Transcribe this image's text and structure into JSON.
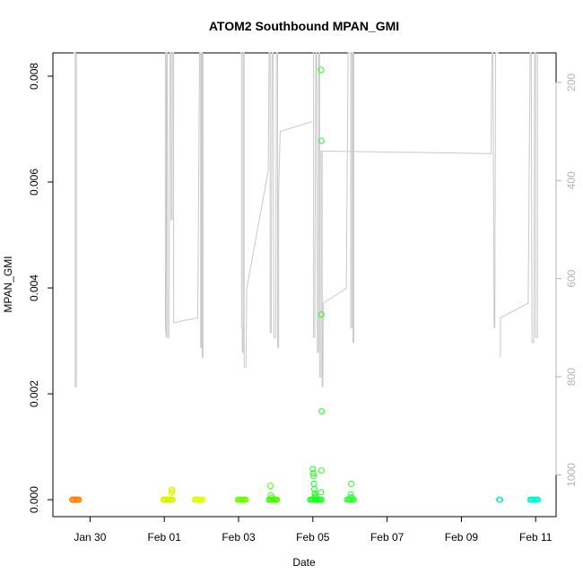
{
  "chart_data": {
    "type": "scatter",
    "title": "ATOM2 Southbound MPAN_GMI",
    "xlabel": "Date",
    "ylabel": "MPAN_GMI",
    "x_unit": "days from Jan 28",
    "xlim": [
      1.0,
      14.55
    ],
    "ylim": [
      -0.00032,
      0.00844
    ],
    "y2lim": [
      1085,
      140
    ],
    "grid": false,
    "legend": "none",
    "x_ticks": [
      {
        "value": 2.0,
        "label": "Jan 30"
      },
      {
        "value": 4.0,
        "label": "Feb 01"
      },
      {
        "value": 6.0,
        "label": "Feb 03"
      },
      {
        "value": 8.0,
        "label": "Feb 05"
      },
      {
        "value": 10.0,
        "label": "Feb 07"
      },
      {
        "value": 12.0,
        "label": "Feb 09"
      },
      {
        "value": 14.0,
        "label": "Feb 11"
      }
    ],
    "y_ticks": [
      {
        "value": 0.0,
        "label": "0.000"
      },
      {
        "value": 0.002,
        "label": "0.002"
      },
      {
        "value": 0.004,
        "label": "0.004"
      },
      {
        "value": 0.006,
        "label": "0.006"
      },
      {
        "value": 0.008,
        "label": "0.008"
      }
    ],
    "y2_ticks": [
      {
        "value": 200,
        "label": "200"
      },
      {
        "value": 400,
        "label": "400"
      },
      {
        "value": 600,
        "label": "600"
      },
      {
        "value": 800,
        "label": "800"
      },
      {
        "value": 1000,
        "label": "1000"
      }
    ],
    "points_series": [
      {
        "color": "#ff8000",
        "points": [
          [
            1.52,
            0
          ],
          [
            1.55,
            0
          ],
          [
            1.58,
            0
          ],
          [
            1.61,
            0
          ],
          [
            1.64,
            0
          ],
          [
            1.67,
            0
          ],
          [
            1.7,
            0
          ]
        ]
      },
      {
        "color": "#d9f200",
        "points": [
          [
            3.98,
            0
          ],
          [
            4.01,
            0
          ],
          [
            4.04,
            0
          ],
          [
            4.07,
            0
          ],
          [
            4.1,
            0
          ],
          [
            4.13,
            0
          ],
          [
            4.16,
            0
          ],
          [
            4.19,
            0
          ],
          [
            4.22,
            0
          ],
          [
            4.19,
            0.00013
          ],
          [
            4.2,
            0.00019
          ],
          [
            4.21,
            0.00016
          ]
        ]
      },
      {
        "color": "#ddff00",
        "points": [
          [
            4.82,
            0
          ],
          [
            4.85,
            0
          ],
          [
            4.88,
            0
          ],
          [
            4.91,
            0
          ],
          [
            4.94,
            0
          ],
          [
            4.97,
            0
          ],
          [
            5.0,
            0
          ],
          [
            5.03,
            0
          ]
        ]
      },
      {
        "color": "#66ff00",
        "points": [
          [
            5.98,
            0
          ],
          [
            6.01,
            0
          ],
          [
            6.04,
            0
          ],
          [
            6.07,
            0
          ],
          [
            6.1,
            0
          ],
          [
            6.13,
            0
          ],
          [
            6.16,
            0
          ],
          [
            6.19,
            0
          ]
        ]
      },
      {
        "color": "#44ff00",
        "points": [
          [
            6.82,
            0
          ],
          [
            6.85,
            0
          ],
          [
            6.88,
            0
          ],
          [
            6.91,
            0
          ],
          [
            6.94,
            0
          ],
          [
            6.97,
            0
          ],
          [
            7.0,
            0
          ],
          [
            7.03,
            0
          ],
          [
            6.86,
            0.00026
          ],
          [
            6.87,
            8e-05
          ],
          [
            6.9,
            4e-05
          ]
        ]
      },
      {
        "color": "#22ff22",
        "points": [
          [
            7.93,
            0
          ],
          [
            7.96,
            0
          ],
          [
            7.99,
            0
          ],
          [
            8.02,
            0
          ],
          [
            8.05,
            0
          ],
          [
            8.08,
            0
          ],
          [
            8.11,
            0
          ],
          [
            8.14,
            0
          ],
          [
            8.17,
            0
          ],
          [
            8.2,
            0
          ],
          [
            8.23,
            0
          ],
          [
            8.0,
            0.00058
          ],
          [
            8.01,
            0.0005
          ],
          [
            8.02,
            0.00045
          ],
          [
            8.03,
            0.0003
          ],
          [
            8.04,
            0.0002
          ],
          [
            8.05,
            0.00012
          ],
          [
            8.06,
            8e-05
          ],
          [
            8.07,
            5e-05
          ],
          [
            8.1,
            3e-05
          ],
          [
            8.22,
            0.00014
          ],
          [
            8.23,
            0.00055
          ],
          [
            8.23,
            0.0035
          ],
          [
            8.24,
            0.00167
          ],
          [
            8.23,
            0.00678
          ],
          [
            8.22,
            0.00812
          ]
        ]
      },
      {
        "color": "#33ff33",
        "points": [
          [
            8.92,
            0
          ],
          [
            8.95,
            0
          ],
          [
            8.98,
            0
          ],
          [
            9.01,
            0
          ],
          [
            9.04,
            0
          ],
          [
            9.07,
            0
          ],
          [
            9.1,
            0
          ],
          [
            9.02,
            0.0001
          ],
          [
            9.03,
            5e-05
          ],
          [
            9.03,
            0.0003
          ],
          [
            9.05,
            3e-05
          ]
        ]
      },
      {
        "color": "#00f0c0",
        "points": [
          [
            13.02,
            0
          ],
          [
            13.04,
            0
          ]
        ]
      },
      {
        "color": "#00f5d4",
        "points": [
          [
            13.85,
            0
          ],
          [
            13.88,
            0
          ],
          [
            13.91,
            0
          ],
          [
            13.94,
            0
          ],
          [
            13.97,
            0
          ],
          [
            14.0,
            0
          ],
          [
            14.03,
            0
          ],
          [
            14.06,
            0
          ]
        ]
      }
    ],
    "depth_track": {
      "color": "#c8c8c8",
      "axis": "right",
      "segments": [
        [
          [
            1.55,
            1
          ],
          [
            1.6,
            1
          ],
          [
            1.6,
            820
          ],
          [
            1.63,
            820
          ],
          [
            1.63,
            1
          ]
        ],
        [
          [
            4.02,
            1
          ],
          [
            4.03,
            1
          ],
          [
            4.03,
            700
          ],
          [
            4.05,
            720
          ],
          [
            4.06,
            1
          ],
          [
            4.08,
            1
          ],
          [
            4.09,
            720
          ],
          [
            4.12,
            720
          ],
          [
            4.15,
            1
          ],
          [
            4.18,
            1
          ],
          [
            4.18,
            480
          ],
          [
            4.21,
            480
          ],
          [
            4.22,
            1
          ],
          [
            4.25,
            1
          ],
          [
            4.25,
            690
          ],
          [
            4.9,
            680
          ],
          [
            4.95,
            1
          ],
          [
            4.98,
            1
          ],
          [
            4.98,
            740
          ],
          [
            5.0,
            740
          ],
          [
            5.0,
            1
          ],
          [
            5.02,
            1
          ],
          [
            5.02,
            760
          ],
          [
            5.04,
            760
          ],
          [
            5.04,
            1
          ]
        ],
        [
          [
            6.05,
            1
          ],
          [
            6.08,
            1
          ],
          [
            6.08,
            700
          ],
          [
            6.1,
            700
          ],
          [
            6.1,
            750
          ],
          [
            6.12,
            750
          ],
          [
            6.12,
            1
          ],
          [
            6.15,
            1
          ],
          [
            6.15,
            780
          ],
          [
            6.2,
            780
          ],
          [
            6.22,
            620
          ],
          [
            6.8,
            380
          ],
          [
            6.82,
            1
          ],
          [
            6.85,
            1
          ],
          [
            6.85,
            710
          ],
          [
            6.88,
            710
          ],
          [
            6.9,
            1
          ],
          [
            6.93,
            1
          ],
          [
            6.95,
            720
          ],
          [
            7.0,
            720
          ],
          [
            7.02,
            1
          ],
          [
            7.05,
            1
          ],
          [
            7.05,
            740
          ],
          [
            7.08,
            740
          ],
          [
            7.08,
            420
          ],
          [
            7.12,
            300
          ],
          [
            7.98,
            280
          ]
        ],
        [
          [
            8.0,
            1
          ],
          [
            8.02,
            1
          ],
          [
            8.02,
            720
          ],
          [
            8.05,
            720
          ],
          [
            8.08,
            1
          ],
          [
            8.1,
            1
          ],
          [
            8.12,
            750
          ],
          [
            8.15,
            750
          ],
          [
            8.16,
            1
          ],
          [
            8.18,
            1
          ],
          [
            8.18,
            800
          ],
          [
            8.22,
            800
          ],
          [
            8.22,
            340
          ],
          [
            8.25,
            340
          ],
          [
            8.25,
            820
          ],
          [
            8.27,
            820
          ],
          [
            8.28,
            650
          ],
          [
            8.9,
            620
          ],
          [
            8.95,
            120
          ],
          [
            9.0,
            1
          ],
          [
            9.02,
            1
          ],
          [
            9.02,
            700
          ],
          [
            9.05,
            700
          ],
          [
            9.05,
            1
          ],
          [
            9.08,
            1
          ],
          [
            9.08,
            730
          ],
          [
            9.1,
            730
          ],
          [
            9.1,
            1
          ]
        ],
        [
          [
            8.22,
            340
          ],
          [
            12.8,
            345
          ],
          [
            12.82,
            1
          ],
          [
            12.85,
            1
          ],
          [
            12.88,
            700
          ],
          [
            12.9,
            700
          ],
          [
            12.92,
            1
          ],
          [
            13.0,
            1
          ]
        ],
        [
          [
            13.05,
            760
          ],
          [
            13.05,
            680
          ],
          [
            13.8,
            650
          ],
          [
            13.85,
            1
          ],
          [
            13.88,
            1
          ],
          [
            13.9,
            730
          ],
          [
            13.95,
            730
          ],
          [
            13.97,
            1
          ],
          [
            14.0,
            1
          ],
          [
            14.0,
            720
          ],
          [
            14.05,
            720
          ],
          [
            14.05,
            1
          ]
        ]
      ]
    }
  }
}
